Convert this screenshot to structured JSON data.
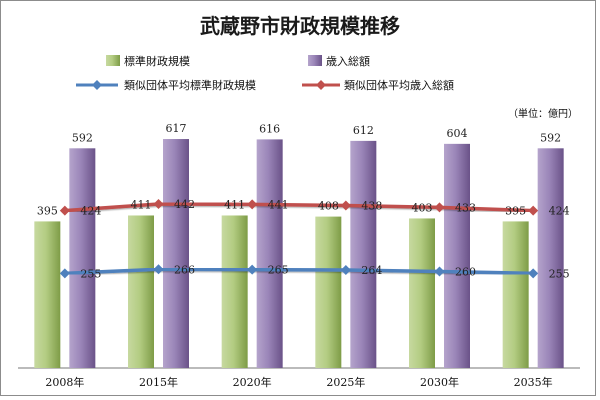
{
  "chart_data": {
    "type": "bar",
    "title": "武蔵野市財政規模推移",
    "unit_note": "（単位：億円）",
    "categories": [
      "2008年",
      "2015年",
      "2020年",
      "2025年",
      "2030年",
      "2035年"
    ],
    "series": [
      {
        "name": "標準財政規模",
        "kind": "bar",
        "color": "#9bbb59",
        "values": [
          395,
          411,
          411,
          408,
          403,
          395
        ]
      },
      {
        "name": "歳入総額",
        "kind": "bar",
        "color": "#8064a2",
        "values": [
          592,
          617,
          616,
          612,
          604,
          592
        ]
      },
      {
        "name": "類似団体平均標準財政規模",
        "kind": "line",
        "color": "#4f81bd",
        "values": [
          255,
          266,
          265,
          264,
          260,
          255
        ]
      },
      {
        "name": "類似団体平均歳入総額",
        "kind": "line",
        "color": "#c0504d",
        "values": [
          424,
          442,
          441,
          438,
          433,
          424
        ]
      }
    ],
    "ylim": [
      0,
      800
    ],
    "grid": false,
    "legend_position": "top"
  }
}
